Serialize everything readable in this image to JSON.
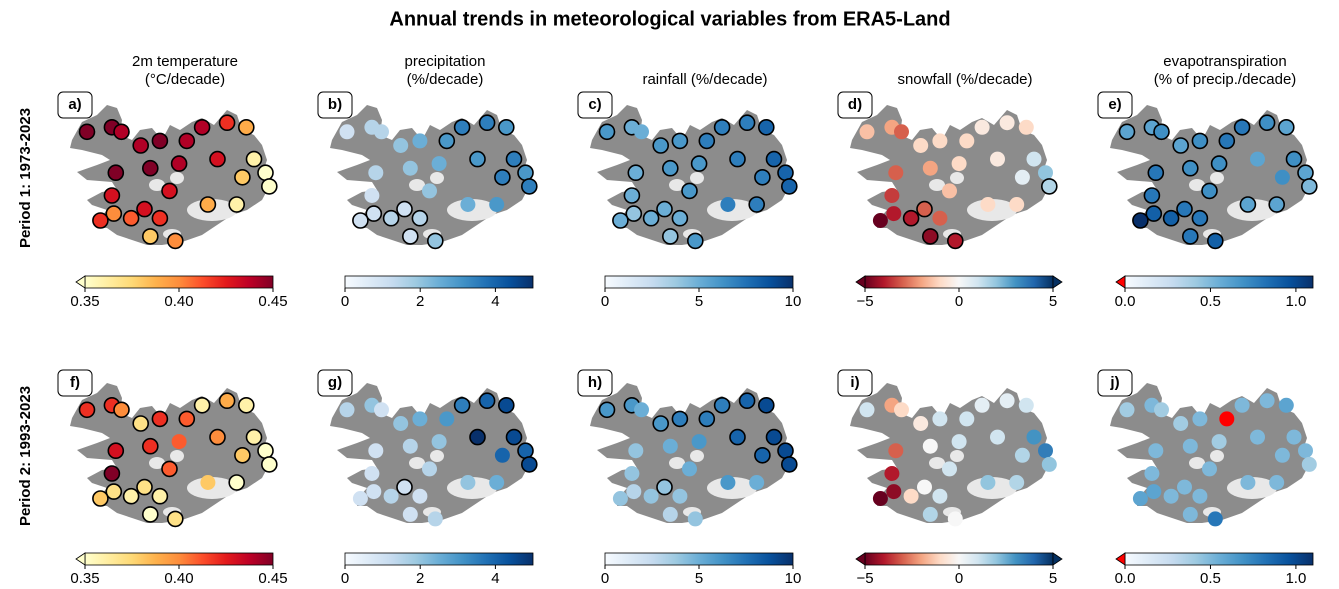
{
  "title": "Annual trends in meteorological variables from ERA5-Land",
  "rows": [
    "Period 1: 1973-2023",
    "Period 2: 1993-2023"
  ],
  "stations": {
    "lon": [
      -22.0,
      -23.3,
      -21.5,
      -20.5,
      -19.5,
      -18.1,
      -17.3,
      -16.0,
      -15.0,
      -14.6,
      -14.0,
      -13.8,
      -15.2,
      -16.5,
      -18.5,
      -20.0,
      -21.8,
      -22.0,
      -21.9,
      -22.6,
      -21.0,
      -20.3,
      -19.5,
      -20.0,
      -18.7,
      -17.0,
      -15.5,
      -19.0
    ],
    "lat": [
      66.0,
      65.9,
      65.9,
      65.6,
      65.7,
      65.7,
      66.0,
      66.1,
      66.0,
      65.3,
      65.0,
      64.7,
      64.9,
      65.3,
      65.2,
      65.1,
      65.0,
      64.5,
      64.1,
      63.95,
      64.0,
      64.2,
      64.0,
      63.6,
      63.5,
      64.3,
      64.3,
      64.6
    ]
  },
  "columns": [
    {
      "title": [
        "2m temperature",
        "(°C/decade)"
      ],
      "clim": [
        0.35,
        0.45
      ],
      "extend": "min",
      "ticks": [
        {
          "value": 0.35,
          "label": "0.35"
        },
        {
          "value": 0.4,
          "label": "0.40"
        },
        {
          "value": 0.45,
          "label": "0.45"
        }
      ],
      "colors": [
        "#ffffcc",
        "#ffeda0",
        "#fed976",
        "#feb24c",
        "#fd8d3c",
        "#fc4e2a",
        "#e31a1c",
        "#bd0026",
        "#800026"
      ]
    },
    {
      "title": [
        "precipitation",
        "(%/decade)"
      ],
      "clim": [
        0,
        5
      ],
      "extend": "none",
      "ticks": [
        0,
        2,
        4
      ],
      "colors": [
        "#f7fbff",
        "#deebf7",
        "#c6dbef",
        "#9ecae1",
        "#6baed6",
        "#4292c6",
        "#2171b5",
        "#08519c",
        "#08306b"
      ]
    },
    {
      "title": [
        "rainfall (%/decade)"
      ],
      "clim": [
        0,
        10
      ],
      "extend": "none",
      "ticks": [
        0,
        5,
        10
      ],
      "colors": [
        "#f7fbff",
        "#deebf7",
        "#c6dbef",
        "#9ecae1",
        "#6baed6",
        "#4292c6",
        "#2171b5",
        "#08519c",
        "#08306b"
      ]
    },
    {
      "title": [
        "snowfall (%/decade)"
      ],
      "clim": [
        -5,
        5
      ],
      "extend": "both",
      "ticks": [
        {
          "value": -5,
          "label": "−5"
        },
        0,
        5
      ],
      "colors": [
        "#67001f",
        "#b2182b",
        "#d6604d",
        "#f4a582",
        "#fddbc7",
        "#f7f7f7",
        "#d1e5f0",
        "#92c5de",
        "#4393c3",
        "#2166ac",
        "#053061"
      ]
    },
    {
      "title": [
        "evapotranspiration",
        "(% of precip./decade)"
      ],
      "clim": [
        0,
        1.1
      ],
      "extend": "min",
      "under_color": "#ff0000",
      "ticks": [
        {
          "value": 0,
          "label": "0.0"
        },
        {
          "value": 0.5,
          "label": "0.5"
        },
        {
          "value": 1,
          "label": "1.0"
        }
      ],
      "colors": [
        "#f7fbff",
        "#deebf7",
        "#c6dbef",
        "#9ecae1",
        "#6baed6",
        "#4292c6",
        "#2171b5",
        "#08519c",
        "#08306b"
      ]
    }
  ],
  "panels": [
    {
      "label": "a)",
      "row": 0,
      "column": 0,
      "values": [
        0.45,
        0.45,
        0.44,
        0.44,
        0.45,
        0.44,
        0.44,
        0.42,
        0.39,
        0.36,
        0.35,
        0.35,
        0.38,
        0.43,
        0.44,
        0.45,
        0.45,
        0.43,
        0.4,
        0.42,
        0.41,
        0.43,
        0.42,
        0.38,
        0.4,
        0.39,
        0.36,
        0.43
      ],
      "significant": [
        1,
        1,
        1,
        1,
        1,
        1,
        1,
        1,
        1,
        1,
        1,
        1,
        1,
        1,
        1,
        1,
        1,
        1,
        1,
        1,
        1,
        1,
        1,
        1,
        1,
        1,
        1,
        1
      ]
    },
    {
      "label": "b)",
      "row": 0,
      "column": 1,
      "values": [
        1.5,
        1,
        1.5,
        2,
        2.5,
        3,
        3.5,
        3.5,
        3,
        3.5,
        3,
        3.5,
        3.5,
        3,
        2.5,
        2,
        1.5,
        1,
        1,
        1,
        1.5,
        1,
        1.5,
        1,
        2,
        2.5,
        3,
        2
      ],
      "significant": [
        0,
        0,
        0,
        0,
        0,
        1,
        1,
        1,
        1,
        1,
        1,
        1,
        1,
        1,
        0,
        0,
        0,
        0,
        1,
        1,
        1,
        1,
        1,
        1,
        1,
        0,
        0,
        0
      ]
    },
    {
      "label": "c)",
      "row": 0,
      "column": 2,
      "values": [
        5,
        6,
        5,
        6,
        6,
        7,
        7,
        7,
        8,
        8,
        8,
        8,
        7,
        7,
        6,
        6,
        5,
        5,
        4,
        5,
        5,
        5,
        5,
        4,
        6,
        7,
        7,
        6
      ],
      "significant": [
        1,
        1,
        0,
        1,
        1,
        1,
        1,
        1,
        1,
        1,
        1,
        1,
        1,
        1,
        1,
        1,
        1,
        1,
        1,
        1,
        1,
        1,
        1,
        1,
        1,
        0,
        1,
        1
      ]
    },
    {
      "label": "d)",
      "row": 0,
      "column": 3,
      "values": [
        -2,
        -1.5,
        -3,
        -1,
        -1,
        -1,
        -0.5,
        -0.5,
        -1,
        1,
        2,
        1.5,
        0.5,
        -0.5,
        -1,
        -2,
        -3,
        -3.5,
        -4,
        -5,
        -4,
        -3,
        -3,
        -4.5,
        -4,
        -1,
        -1,
        -1.5
      ],
      "significant": [
        0,
        0,
        0,
        0,
        0,
        0,
        0,
        0,
        0,
        0,
        0,
        1,
        0,
        0,
        0,
        0,
        0,
        0,
        0,
        0,
        1,
        1,
        0,
        1,
        1,
        0,
        0,
        0
      ]
    },
    {
      "label": "e)",
      "row": 0,
      "column": 4,
      "values": [
        0.6,
        0.6,
        0.7,
        0.6,
        0.7,
        0.8,
        0.8,
        0.7,
        0.6,
        0.7,
        0.6,
        0.5,
        0.7,
        0.6,
        0.7,
        0.7,
        0.8,
        0.8,
        0.9,
        1.1,
        0.9,
        0.8,
        0.8,
        0.8,
        0.9,
        0.6,
        0.6,
        0.7
      ],
      "significant": [
        1,
        1,
        1,
        1,
        1,
        1,
        1,
        1,
        1,
        1,
        1,
        1,
        0,
        0,
        1,
        1,
        1,
        1,
        1,
        1,
        1,
        1,
        1,
        1,
        1,
        1,
        1,
        1
      ]
    },
    {
      "label": "f)",
      "row": 1,
      "column": 0,
      "values": [
        0.42,
        0.42,
        0.4,
        0.37,
        0.42,
        0.41,
        0.36,
        0.39,
        0.36,
        0.36,
        0.35,
        0.35,
        0.38,
        0.4,
        0.41,
        0.42,
        0.43,
        0.45,
        0.37,
        0.38,
        0.36,
        0.37,
        0.36,
        0.35,
        0.37,
        0.38,
        0.35,
        0.41
      ],
      "significant": [
        1,
        1,
        1,
        1,
        1,
        1,
        1,
        1,
        1,
        1,
        1,
        1,
        1,
        1,
        0,
        1,
        1,
        1,
        1,
        1,
        1,
        1,
        1,
        1,
        1,
        0,
        1,
        1
      ]
    },
    {
      "label": "g)",
      "row": 1,
      "column": 1,
      "values": [
        2,
        1.5,
        1,
        2,
        2.5,
        3,
        3.5,
        4,
        4.5,
        4.5,
        4,
        4.5,
        4,
        5,
        2,
        1.5,
        1,
        1,
        1,
        1,
        1.5,
        1,
        1,
        1,
        1.5,
        2,
        2.5,
        1.5
      ],
      "significant": [
        0,
        0,
        0,
        0,
        0,
        0,
        1,
        1,
        1,
        1,
        1,
        1,
        0,
        1,
        0,
        0,
        0,
        0,
        0,
        0,
        0,
        1,
        0,
        0,
        0,
        0,
        0,
        0
      ]
    },
    {
      "label": "h)",
      "row": 1,
      "column": 2,
      "values": [
        6,
        6,
        5,
        6,
        7,
        7,
        7,
        8,
        9,
        9,
        9,
        9,
        8,
        8,
        6,
        5,
        4,
        4,
        3,
        4,
        4,
        4,
        4,
        3,
        4,
        6,
        5,
        5
      ],
      "significant": [
        1,
        1,
        0,
        1,
        1,
        1,
        1,
        1,
        1,
        1,
        1,
        1,
        1,
        1,
        0,
        0,
        0,
        0,
        0,
        0,
        0,
        1,
        0,
        0,
        0,
        0,
        0,
        0
      ]
    },
    {
      "label": "i)",
      "row": 1,
      "column": 3,
      "values": [
        -2,
        1,
        -1,
        -0.5,
        1,
        1,
        0.5,
        0.5,
        1,
        3,
        3.5,
        2,
        1.5,
        1,
        1,
        0,
        -3,
        -4,
        -4.5,
        -5,
        -1,
        0,
        1,
        1.5,
        0,
        2,
        1.5,
        1
      ],
      "significant": [
        0,
        0,
        0,
        0,
        0,
        0,
        0,
        0,
        0,
        0,
        0,
        0,
        0,
        0,
        0,
        0,
        0,
        0,
        0,
        0,
        0,
        0,
        0,
        0,
        0,
        0,
        0,
        0
      ]
    },
    {
      "label": "j)",
      "row": 1,
      "column": 4,
      "values": [
        0.5,
        0.4,
        0.4,
        0.4,
        0.5,
        -0.1,
        0.5,
        0.5,
        0.6,
        0.5,
        0.5,
        0.4,
        0.5,
        0.5,
        0.4,
        0.5,
        0.5,
        0.5,
        0.6,
        0.6,
        0.5,
        0.5,
        0.5,
        0.5,
        0.8,
        0.5,
        0.5,
        0.5
      ],
      "significant": [
        0,
        0,
        0,
        0,
        0,
        0,
        0,
        0,
        0,
        0,
        0,
        0,
        0,
        0,
        0,
        0,
        0,
        0,
        0,
        0,
        0,
        0,
        0,
        0,
        0,
        0,
        0,
        0
      ]
    }
  ]
}
